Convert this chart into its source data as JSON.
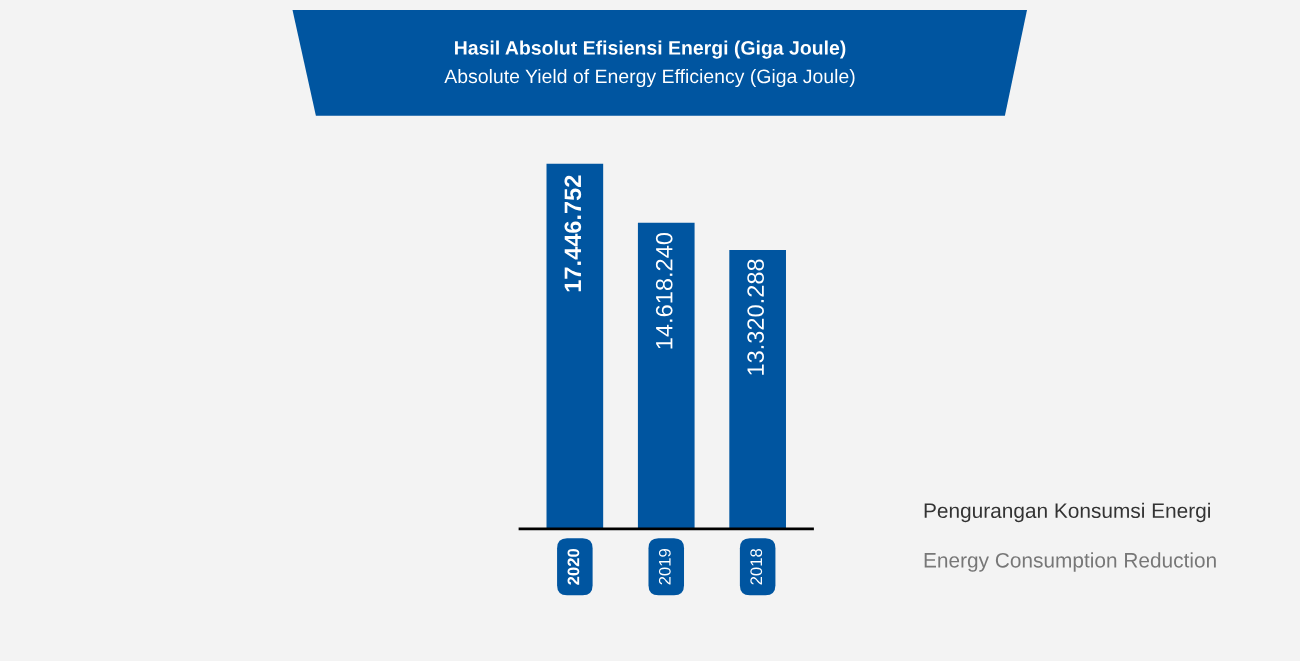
{
  "chart_data": {
    "type": "bar",
    "title": "Hasil Absolut Efisiensi Energi (Giga Joule)",
    "subtitle": "Absolute Yield of Energy Efficiency (Giga Joule)",
    "categories": [
      "2020",
      "2019",
      "2018"
    ],
    "values": [
      17446752,
      14618240,
      13320288
    ],
    "value_labels": [
      "17.446.752",
      "14.618.240",
      "13.320.288"
    ],
    "color": "#0055a0",
    "annotations": [
      "Pengurangan Konsumsi Energi",
      "Energy Consumption Reduction"
    ]
  }
}
